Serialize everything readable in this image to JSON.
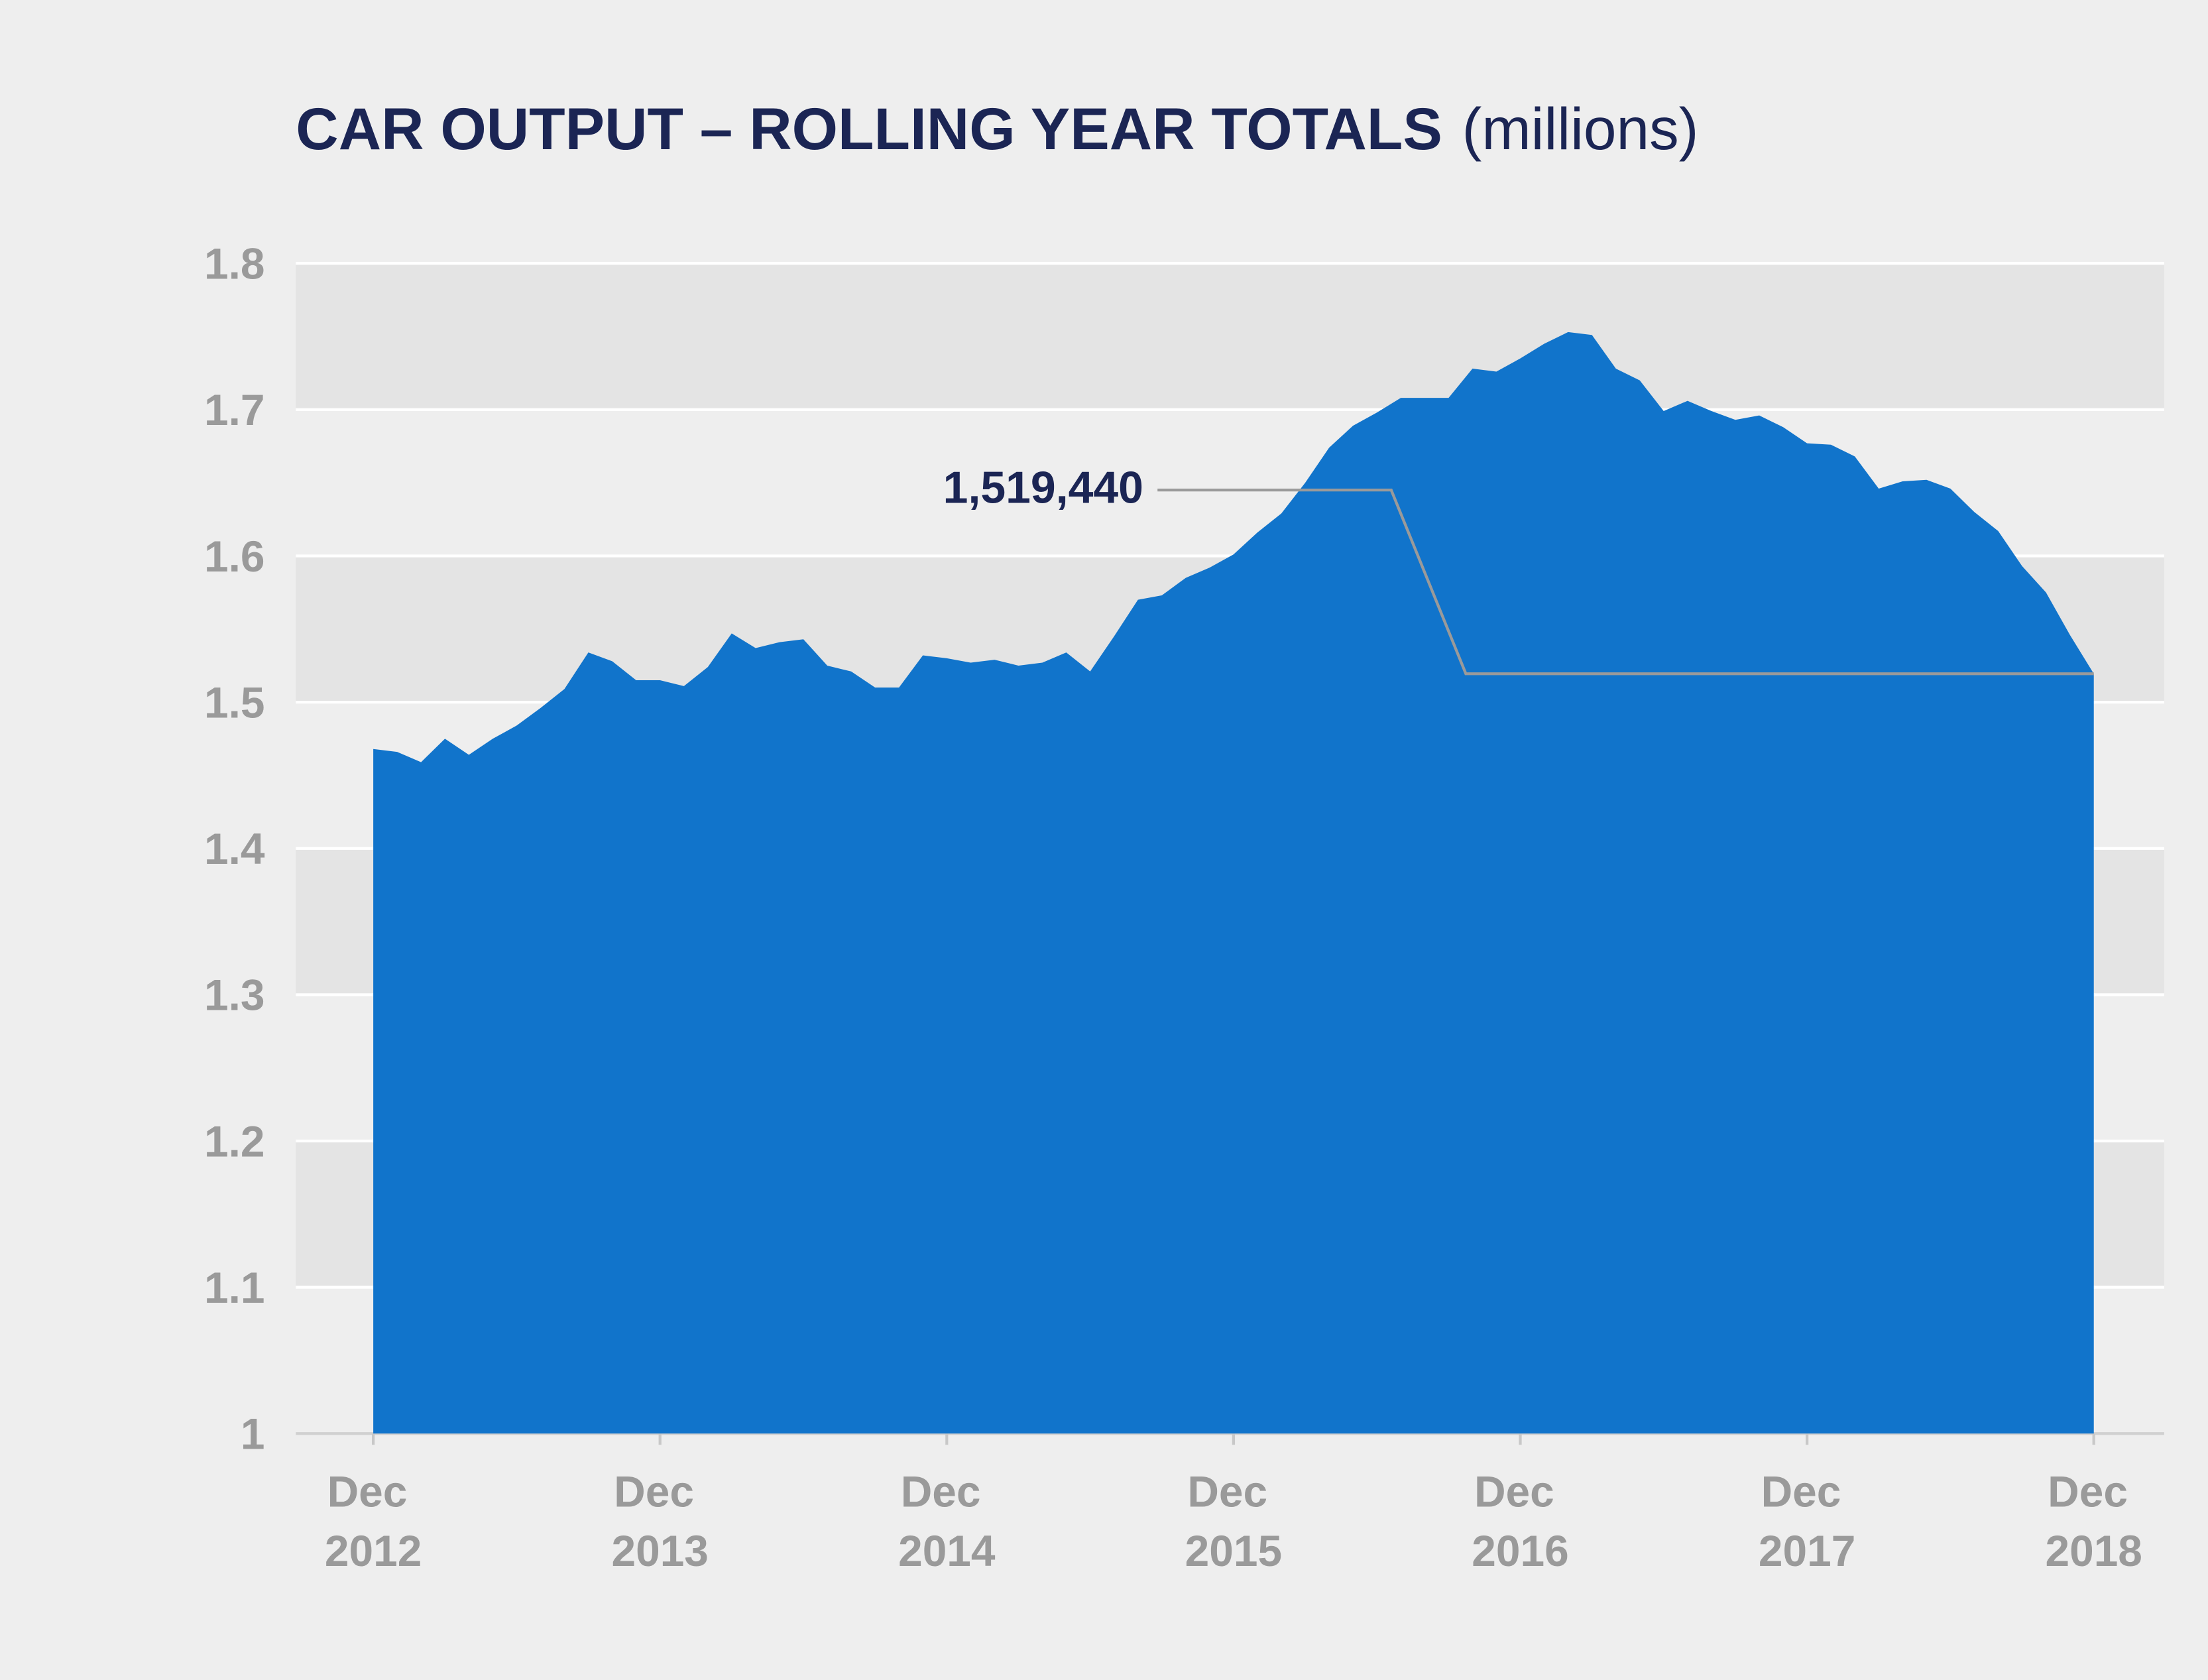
{
  "chart_data": {
    "type": "area",
    "title": "CAR OUTPUT – ROLLING YEAR TOTALS",
    "subtitle": "(millions)",
    "categories": [
      "Dec 2012",
      null,
      null,
      null,
      null,
      null,
      null,
      null,
      null,
      null,
      null,
      null,
      "Dec 2013",
      null,
      null,
      null,
      null,
      null,
      null,
      null,
      null,
      null,
      null,
      null,
      "Dec 2014",
      null,
      null,
      null,
      null,
      null,
      null,
      null,
      null,
      null,
      null,
      null,
      "Dec 2015",
      null,
      null,
      null,
      null,
      null,
      null,
      null,
      null,
      null,
      null,
      null,
      "Dec 2016",
      null,
      null,
      null,
      null,
      null,
      null,
      null,
      null,
      null,
      null,
      null,
      "Dec 2017",
      null,
      null,
      null,
      null,
      null,
      null,
      null,
      null,
      null,
      null,
      null,
      "Dec 2018"
    ],
    "values": [
      1.468,
      1.466,
      1.459,
      1.475,
      1.464,
      1.475,
      1.484,
      1.496,
      1.509,
      1.534,
      1.528,
      1.515,
      1.515,
      1.511,
      1.524,
      1.547,
      1.537,
      1.541,
      1.543,
      1.525,
      1.521,
      1.51,
      1.51,
      1.532,
      1.53,
      1.527,
      1.529,
      1.525,
      1.527,
      1.534,
      1.521,
      1.545,
      1.57,
      1.573,
      1.585,
      1.592,
      1.601,
      1.616,
      1.629,
      1.65,
      1.674,
      1.689,
      1.698,
      1.708,
      1.708,
      1.708,
      1.728,
      1.726,
      1.735,
      1.745,
      1.753,
      1.751,
      1.728,
      1.72,
      1.699,
      1.706,
      1.699,
      1.693,
      1.696,
      1.688,
      1.677,
      1.676,
      1.668,
      1.646,
      1.651,
      1.652,
      1.646,
      1.63,
      1.617,
      1.593,
      1.575,
      1.546,
      1.51944
    ],
    "value_labels": [
      null,
      null,
      null,
      null,
      null,
      null,
      null,
      null,
      null,
      null,
      null,
      null,
      null,
      null,
      null,
      null,
      null,
      null,
      null,
      null,
      null,
      null,
      null,
      null,
      null,
      null,
      null,
      null,
      null,
      null,
      null,
      null,
      null,
      null,
      null,
      null,
      null,
      null,
      null,
      null,
      null,
      null,
      null,
      null,
      null,
      null,
      null,
      null,
      null,
      null,
      null,
      null,
      null,
      null,
      null,
      null,
      null,
      null,
      null,
      null,
      null,
      null,
      null,
      null,
      null,
      null,
      null,
      null,
      null,
      null,
      null,
      null,
      "1,519,440"
    ],
    "color": "#1174cb",
    "ylim": [
      1,
      1.8
    ],
    "yticks": [
      1,
      1.1,
      1.2,
      1.3,
      1.4,
      1.5,
      1.6,
      1.7,
      1.8
    ],
    "grid": true
  }
}
